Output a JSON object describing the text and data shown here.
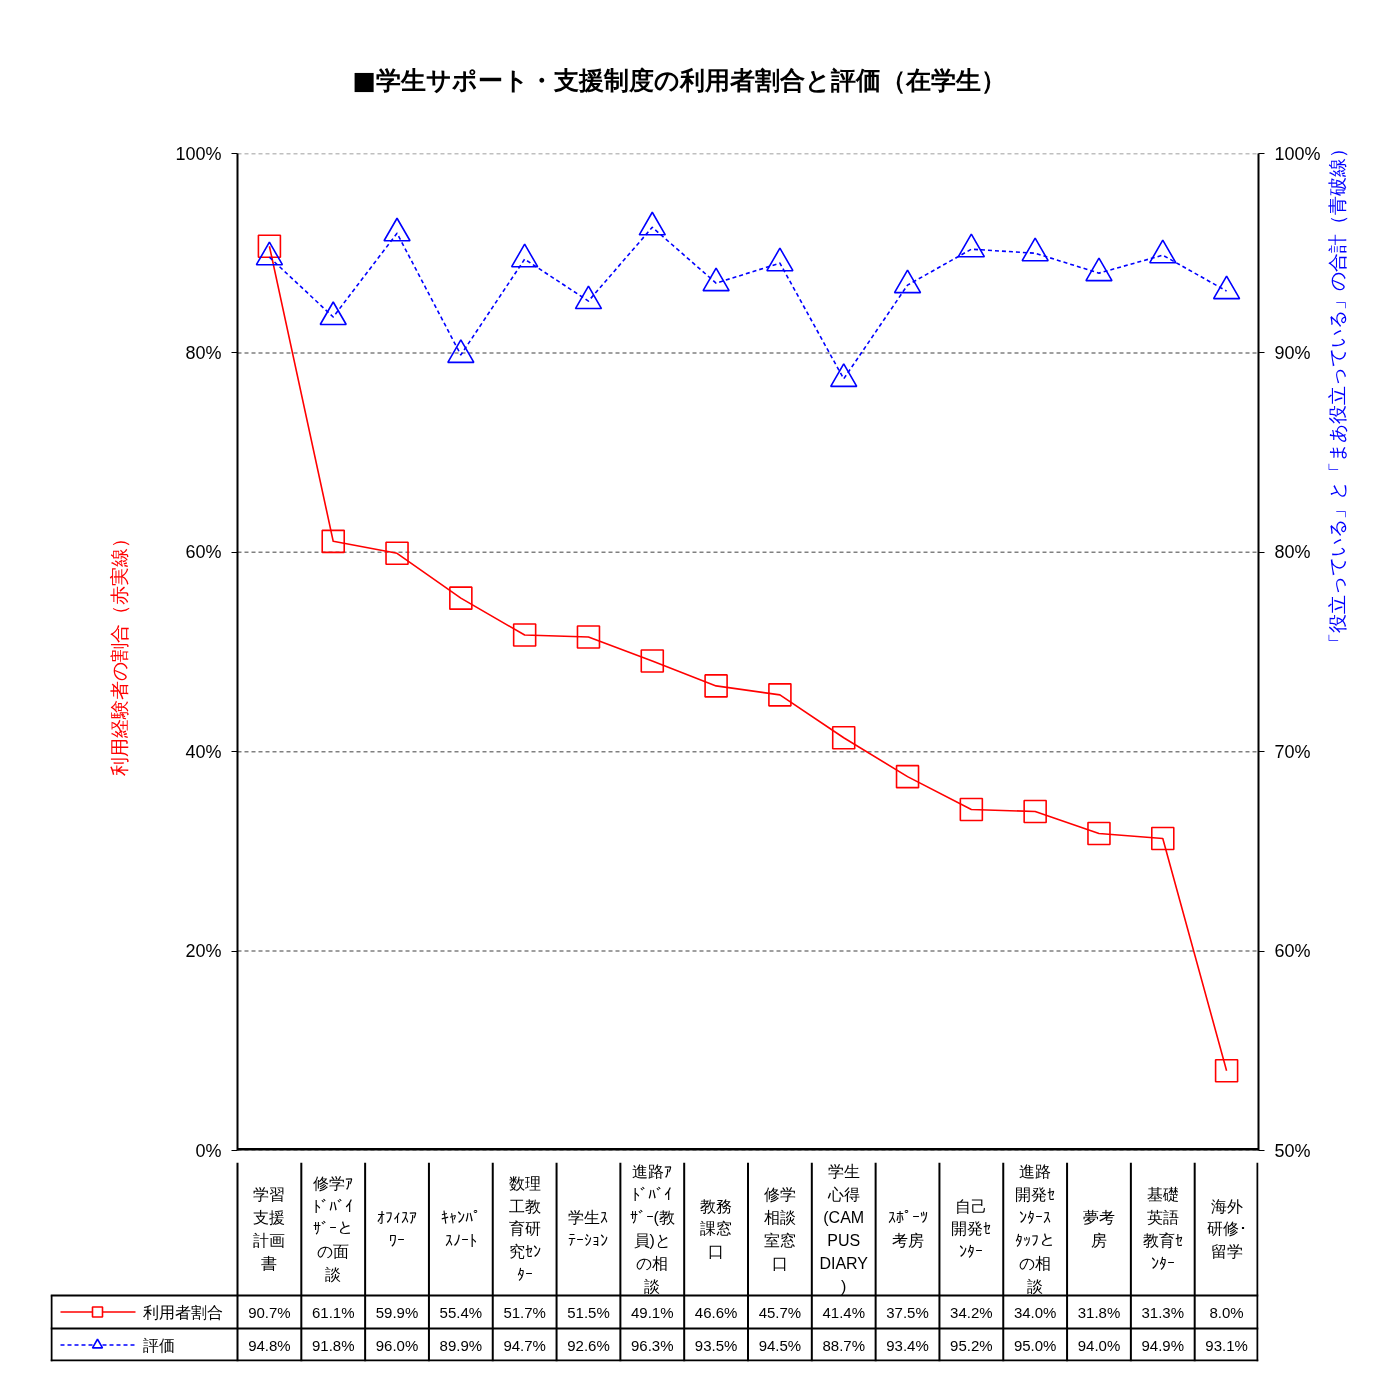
{
  "chart_data": {
    "type": "line",
    "title": "■学生サポート・支援制度の利用者割合と評価（在学生）",
    "ylabel": "利用経験者の割合（赤実線）",
    "y2label": "「役立っている」と「まあ役立っている」の合計（青破線）",
    "categories": [
      "学習支援計画書",
      "修学ｱﾄﾞﾊﾞｲｻﾞｰとの面談",
      "ｵﾌｨｽｱﾜｰ",
      "ｷｬﾝﾊﾟｽﾉｰﾄ",
      "数理工教育研究ｾﾝﾀｰ",
      "学生ｽﾃｰｼｮﾝ",
      "進路ｱﾄﾞﾊﾞｲｻﾞｰ(教員)との相談",
      "教務課窓口",
      "修学相談室窓口",
      "学生心得(CAMPUS DIARY)",
      "ｽﾎﾟｰﾂ考房",
      "自己開発ｾﾝﾀｰ",
      "進路開発ｾﾝﾀｰｽﾀｯﾌとの相談",
      "夢考房",
      "基礎英語教育ｾﾝﾀｰ",
      "海外研修･留学"
    ],
    "series": [
      {
        "name": "利用者割合",
        "color": "#ff0000",
        "marker": "square",
        "line_style": "solid",
        "values": [
          90.7,
          61.1,
          59.9,
          55.4,
          51.7,
          51.5,
          49.1,
          46.6,
          45.7,
          41.4,
          37.5,
          34.2,
          34.0,
          31.8,
          31.3,
          8.0
        ],
        "value_labels": [
          "90.7%",
          "61.1%",
          "59.9%",
          "55.4%",
          "51.7%",
          "51.5%",
          "49.1%",
          "46.6%",
          "45.7%",
          "41.4%",
          "37.5%",
          "34.2%",
          "34.0%",
          "31.8%",
          "31.3%",
          "8.0%"
        ]
      },
      {
        "name": "評価",
        "color": "#0000ff",
        "axis": "y2",
        "marker": "triangle",
        "line_style": "dashed",
        "values": [
          94.8,
          91.8,
          96.0,
          89.9,
          94.7,
          92.6,
          96.3,
          93.5,
          94.5,
          88.7,
          93.4,
          95.2,
          95.0,
          94.0,
          94.9,
          93.1
        ],
        "value_labels": [
          "94.8%",
          "91.8%",
          "96.0%",
          "89.9%",
          "94.7%",
          "92.6%",
          "96.3%",
          "93.5%",
          "94.5%",
          "88.7%",
          "93.4%",
          "95.2%",
          "95.0%",
          "94.0%",
          "94.9%",
          "93.1%"
        ]
      }
    ],
    "ylim": [
      0,
      100
    ],
    "yticks": [
      {
        "value": 0,
        "label": "0%"
      },
      {
        "value": 20,
        "label": "20%"
      },
      {
        "value": 40,
        "label": "40%"
      },
      {
        "value": 60,
        "label": "60%"
      },
      {
        "value": 80,
        "label": "80%"
      },
      {
        "value": 100,
        "label": "100%"
      }
    ],
    "y2lim": [
      50,
      100
    ],
    "y2ticks": [
      {
        "value": 50,
        "label": "50%"
      },
      {
        "value": 60,
        "label": "60%"
      },
      {
        "value": 70,
        "label": "70%"
      },
      {
        "value": 80,
        "label": "80%"
      },
      {
        "value": 90,
        "label": "90%"
      },
      {
        "value": 100,
        "label": "100%"
      }
    ],
    "grid": "y",
    "legend": "bottom"
  }
}
